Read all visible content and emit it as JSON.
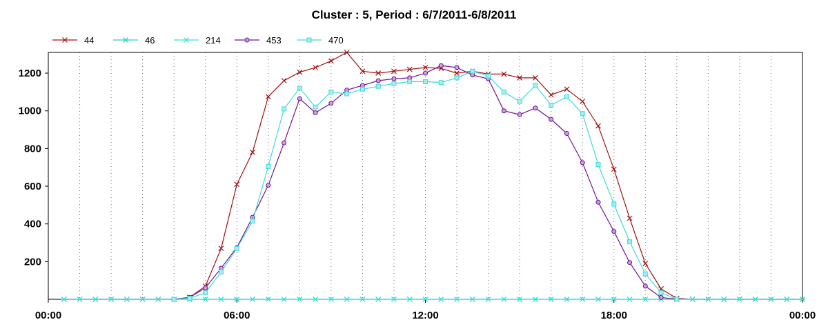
{
  "chart_data": {
    "type": "line",
    "title": "Cluster : 5, Period : 6/7/2011-6/8/2011",
    "xlim": [
      0,
      24
    ],
    "ylim": [
      0,
      1310
    ],
    "y_ticks": [
      200,
      400,
      600,
      800,
      1000,
      1200
    ],
    "x_tick_labels": [
      "00:00",
      "06:00",
      "12:00",
      "18:00",
      "00:00"
    ],
    "grid": "vertical dotted every hour",
    "legend_position": "top-left",
    "series": [
      {
        "name": "44",
        "color": "#a01010",
        "marker": "x",
        "points": [
          [
            0.5,
            0
          ],
          [
            1.0,
            0
          ],
          [
            1.5,
            0
          ],
          [
            2.0,
            0
          ],
          [
            2.5,
            0
          ],
          [
            3.0,
            0
          ],
          [
            3.5,
            0
          ],
          [
            4.0,
            0
          ],
          [
            4.5,
            10
          ],
          [
            5.0,
            70
          ],
          [
            5.5,
            270
          ],
          [
            6.0,
            610
          ],
          [
            6.5,
            780
          ],
          [
            7.0,
            1075
          ],
          [
            7.5,
            1160
          ],
          [
            8.0,
            1205
          ],
          [
            8.5,
            1230
          ],
          [
            9.0,
            1265
          ],
          [
            9.5,
            1310
          ],
          [
            10.0,
            1210
          ],
          [
            10.5,
            1200
          ],
          [
            11.0,
            1210
          ],
          [
            11.5,
            1220
          ],
          [
            12.0,
            1230
          ],
          [
            12.5,
            1225
          ],
          [
            13.0,
            1200
          ],
          [
            13.5,
            1210
          ],
          [
            14.0,
            1195
          ],
          [
            14.5,
            1195
          ],
          [
            15.0,
            1175
          ],
          [
            15.5,
            1175
          ],
          [
            16.0,
            1085
          ],
          [
            16.5,
            1115
          ],
          [
            17.0,
            1050
          ],
          [
            17.5,
            920
          ],
          [
            18.0,
            690
          ],
          [
            18.5,
            430
          ],
          [
            19.0,
            190
          ],
          [
            19.5,
            55
          ],
          [
            20.0,
            5
          ],
          [
            20.5,
            0
          ],
          [
            21.0,
            0
          ],
          [
            21.5,
            0
          ],
          [
            22.0,
            0
          ],
          [
            22.5,
            0
          ],
          [
            23.0,
            0
          ],
          [
            23.5,
            0
          ],
          [
            24.0,
            0
          ]
        ]
      },
      {
        "name": "46",
        "color": "#20d0d0",
        "marker": "star",
        "points": [
          [
            0.5,
            0
          ],
          [
            1.0,
            0
          ],
          [
            1.5,
            0
          ],
          [
            2.0,
            0
          ],
          [
            2.5,
            0
          ],
          [
            3.0,
            0
          ],
          [
            3.5,
            0
          ],
          [
            4.0,
            0
          ],
          [
            4.5,
            0
          ],
          [
            5.0,
            0
          ],
          [
            5.5,
            0
          ],
          [
            6.0,
            0
          ],
          [
            6.5,
            0
          ],
          [
            7.0,
            0
          ],
          [
            7.5,
            0
          ],
          [
            8.0,
            0
          ],
          [
            8.5,
            0
          ],
          [
            9.0,
            0
          ],
          [
            9.5,
            0
          ],
          [
            10.0,
            0
          ],
          [
            10.5,
            0
          ],
          [
            11.0,
            0
          ],
          [
            11.5,
            0
          ],
          [
            12.0,
            0
          ],
          [
            12.5,
            0
          ],
          [
            13.0,
            0
          ],
          [
            13.5,
            0
          ],
          [
            14.0,
            0
          ],
          [
            14.5,
            0
          ],
          [
            15.0,
            0
          ],
          [
            15.5,
            0
          ],
          [
            16.0,
            0
          ],
          [
            16.5,
            0
          ],
          [
            17.0,
            0
          ],
          [
            17.5,
            0
          ],
          [
            18.0,
            0
          ],
          [
            18.5,
            0
          ],
          [
            19.0,
            0
          ],
          [
            19.5,
            0
          ],
          [
            20.0,
            0
          ],
          [
            20.5,
            0
          ],
          [
            21.0,
            0
          ],
          [
            21.5,
            0
          ],
          [
            22.0,
            0
          ],
          [
            22.5,
            0
          ],
          [
            23.0,
            0
          ],
          [
            23.5,
            0
          ],
          [
            24.0,
            0
          ]
        ]
      },
      {
        "name": "214",
        "color": "#30e0e0",
        "marker": "x",
        "points": [
          [
            0.5,
            0
          ],
          [
            1.0,
            0
          ],
          [
            1.5,
            0
          ],
          [
            2.0,
            0
          ],
          [
            2.5,
            0
          ],
          [
            3.0,
            0
          ],
          [
            3.5,
            0
          ],
          [
            4.0,
            0
          ],
          [
            4.5,
            0
          ],
          [
            5.0,
            0
          ],
          [
            5.5,
            0
          ],
          [
            6.0,
            0
          ],
          [
            6.5,
            0
          ],
          [
            7.0,
            0
          ],
          [
            7.5,
            0
          ],
          [
            8.0,
            0
          ],
          [
            8.5,
            0
          ],
          [
            9.0,
            0
          ],
          [
            9.5,
            0
          ],
          [
            10.0,
            0
          ],
          [
            10.5,
            0
          ],
          [
            11.0,
            0
          ],
          [
            11.5,
            0
          ],
          [
            12.0,
            0
          ],
          [
            12.5,
            0
          ],
          [
            13.0,
            0
          ],
          [
            13.5,
            0
          ],
          [
            14.0,
            0
          ],
          [
            14.5,
            0
          ],
          [
            15.0,
            0
          ],
          [
            15.5,
            0
          ],
          [
            16.0,
            0
          ],
          [
            16.5,
            0
          ],
          [
            17.0,
            0
          ],
          [
            17.5,
            0
          ],
          [
            18.0,
            0
          ],
          [
            18.5,
            0
          ],
          [
            19.0,
            0
          ],
          [
            19.5,
            0
          ],
          [
            20.0,
            0
          ],
          [
            20.5,
            0
          ],
          [
            21.0,
            0
          ],
          [
            21.5,
            0
          ],
          [
            22.0,
            0
          ],
          [
            22.5,
            0
          ],
          [
            23.0,
            0
          ],
          [
            23.5,
            0
          ],
          [
            24.0,
            0
          ]
        ]
      },
      {
        "name": "453",
        "color": "#701090",
        "marker": "circle",
        "points": [
          [
            4.0,
            0
          ],
          [
            4.5,
            10
          ],
          [
            5.0,
            60
          ],
          [
            5.5,
            165
          ],
          [
            6.0,
            275
          ],
          [
            6.5,
            435
          ],
          [
            7.0,
            605
          ],
          [
            7.5,
            830
          ],
          [
            8.0,
            1065
          ],
          [
            8.5,
            990
          ],
          [
            9.0,
            1040
          ],
          [
            9.5,
            1110
          ],
          [
            10.0,
            1135
          ],
          [
            10.5,
            1160
          ],
          [
            11.0,
            1170
          ],
          [
            11.5,
            1175
          ],
          [
            12.0,
            1200
          ],
          [
            12.5,
            1240
          ],
          [
            13.0,
            1230
          ],
          [
            13.5,
            1190
          ],
          [
            14.0,
            1170
          ],
          [
            14.5,
            1000
          ],
          [
            15.0,
            980
          ],
          [
            15.5,
            1015
          ],
          [
            16.0,
            955
          ],
          [
            16.5,
            880
          ],
          [
            17.0,
            725
          ],
          [
            17.5,
            515
          ],
          [
            18.0,
            360
          ],
          [
            18.5,
            195
          ],
          [
            19.0,
            70
          ],
          [
            19.5,
            10
          ],
          [
            20.0,
            0
          ]
        ]
      },
      {
        "name": "470",
        "color": "#40d8d8",
        "marker": "square",
        "points": [
          [
            4.0,
            0
          ],
          [
            4.5,
            5
          ],
          [
            5.0,
            35
          ],
          [
            5.5,
            145
          ],
          [
            6.0,
            270
          ],
          [
            6.5,
            415
          ],
          [
            7.0,
            705
          ],
          [
            7.5,
            1010
          ],
          [
            8.0,
            1120
          ],
          [
            8.5,
            1020
          ],
          [
            9.0,
            1100
          ],
          [
            9.5,
            1090
          ],
          [
            10.0,
            1115
          ],
          [
            10.5,
            1130
          ],
          [
            11.0,
            1145
          ],
          [
            11.5,
            1155
          ],
          [
            12.0,
            1155
          ],
          [
            12.5,
            1150
          ],
          [
            13.0,
            1175
          ],
          [
            13.5,
            1210
          ],
          [
            14.0,
            1185
          ],
          [
            14.5,
            1100
          ],
          [
            15.0,
            1050
          ],
          [
            15.5,
            1135
          ],
          [
            16.0,
            1030
          ],
          [
            16.5,
            1075
          ],
          [
            17.0,
            985
          ],
          [
            17.5,
            715
          ],
          [
            18.0,
            505
          ],
          [
            18.5,
            305
          ],
          [
            19.0,
            135
          ],
          [
            19.5,
            35
          ],
          [
            20.0,
            0
          ]
        ]
      }
    ]
  }
}
